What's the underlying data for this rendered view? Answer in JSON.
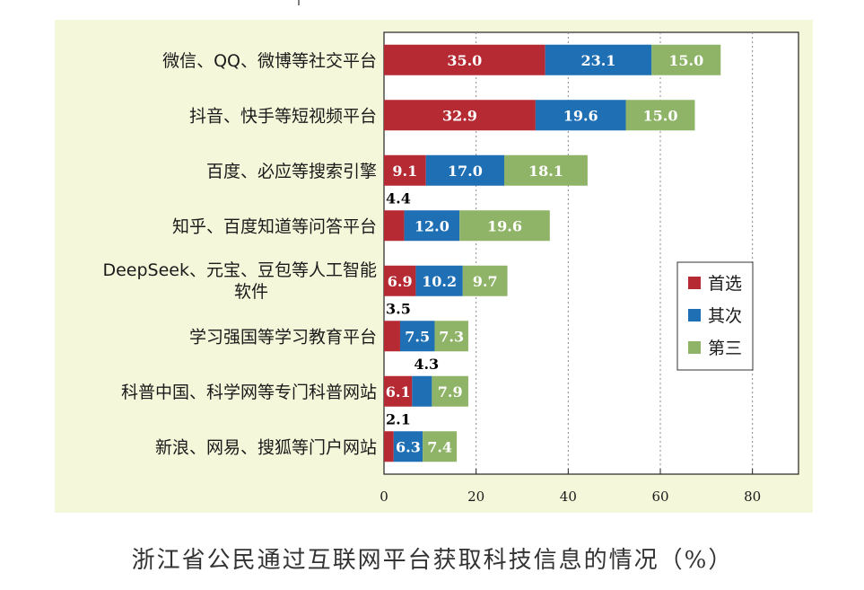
{
  "chart_data": {
    "type": "bar",
    "orientation": "horizontal",
    "stacked": true,
    "title": "浙江省公民通过互联网平台获取科技信息的情况（%）",
    "categories": [
      "微信、QQ、微博等社交平台",
      "抖音、快手等短视频平台",
      "百度、必应等搜索引擎",
      "知乎、百度知道等问答平台",
      "DeepSeek、元宝、豆包等人工智能软件",
      "学习强国等学习教育平台",
      "科普中国、科学网等专门科普网站",
      "新浪、网易、搜狐等门户网站"
    ],
    "series": [
      {
        "name": "首选",
        "color": "#b52a33",
        "values": [
          35.0,
          32.9,
          9.1,
          4.4,
          6.9,
          3.5,
          6.1,
          2.1
        ]
      },
      {
        "name": "其次",
        "color": "#1f6fb5",
        "values": [
          23.1,
          19.6,
          17.0,
          12.0,
          10.2,
          7.5,
          4.3,
          6.3
        ]
      },
      {
        "name": "第三",
        "color": "#8fb468",
        "values": [
          15.0,
          15.0,
          18.1,
          19.6,
          9.7,
          7.3,
          7.9,
          7.4
        ]
      }
    ],
    "xlim": [
      0,
      90
    ],
    "xticks": [
      0,
      20,
      40,
      60,
      80
    ],
    "xlabel": "",
    "ylabel": "",
    "grid": "vertical dotted",
    "legend_position": "right",
    "plot_background": "#f5f7da"
  }
}
